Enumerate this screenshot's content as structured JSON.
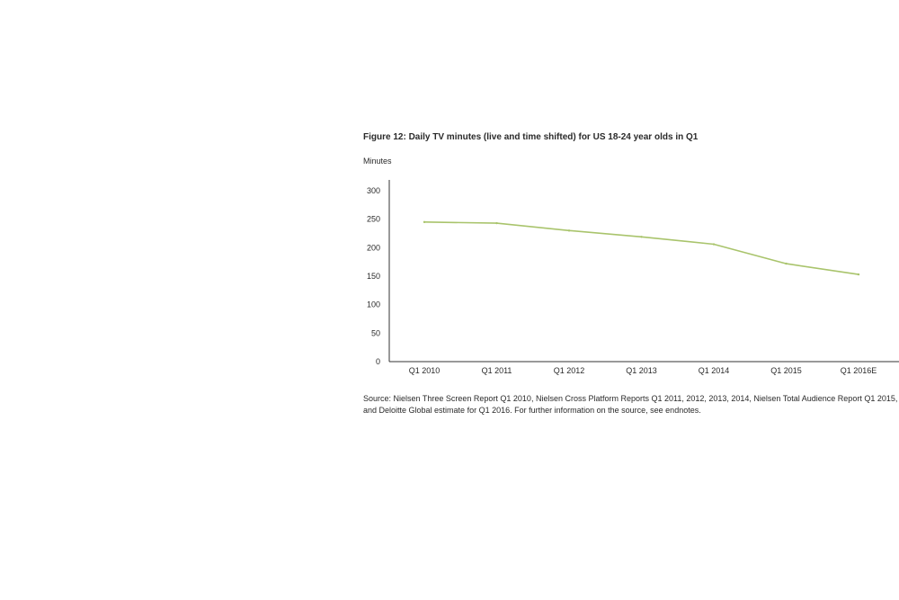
{
  "figure": {
    "title": "Figure 12: Daily TV minutes (live and time shifted) for US 18-24 year olds in Q1",
    "unit_label": "Minutes",
    "source": "Source: Nielsen Three Screen Report Q1 2010, Nielsen Cross Platform Reports Q1 2011, 2012, 2013, 2014, Nielsen Total Audience Report Q1 2015, and Deloitte Global estimate for Q1 2016. For further information on the source, see endnotes."
  },
  "colors": {
    "line": "#a9c46c",
    "axis": "#333333"
  },
  "chart_data": {
    "type": "line",
    "title": "Figure 12: Daily TV minutes (live and time shifted) for US 18-24 year olds in Q1",
    "ylabel": "Minutes",
    "xlabel": "",
    "categories": [
      "Q1 2010",
      "Q1 2011",
      "Q1 2012",
      "Q1 2013",
      "Q1 2014",
      "Q1 2015",
      "Q1 2016E"
    ],
    "values": [
      245,
      243,
      230,
      219,
      206,
      172,
      153
    ],
    "ylim": [
      0,
      300
    ],
    "yticks": [
      0,
      50,
      100,
      150,
      200,
      250,
      300
    ],
    "grid": false,
    "legend": "none"
  }
}
